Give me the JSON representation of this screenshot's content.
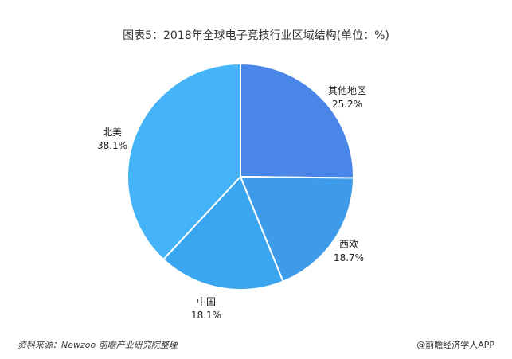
{
  "chart_data": {
    "type": "pie",
    "title": "图表5：2018年全球电子竞技行业区域结构(单位：%)",
    "slices": [
      {
        "label": "其他地区",
        "value": 25.2,
        "value_label": "25.2%",
        "color": "#4a86e8"
      },
      {
        "label": "西欧",
        "value": 18.7,
        "value_label": "18.7%",
        "color": "#3d9be9"
      },
      {
        "label": "中国",
        "value": 18.1,
        "value_label": "18.1%",
        "color": "#3aa6f0"
      },
      {
        "label": "北美",
        "value": 38.1,
        "value_label": "38.1%",
        "color": "#45b3f7"
      }
    ],
    "start_angle_deg": 0,
    "direction": "clockwise"
  },
  "footer": {
    "source": "资料来源：Newzoo 前瞻产业研究院整理",
    "brand": "@前瞻经济学人APP"
  }
}
